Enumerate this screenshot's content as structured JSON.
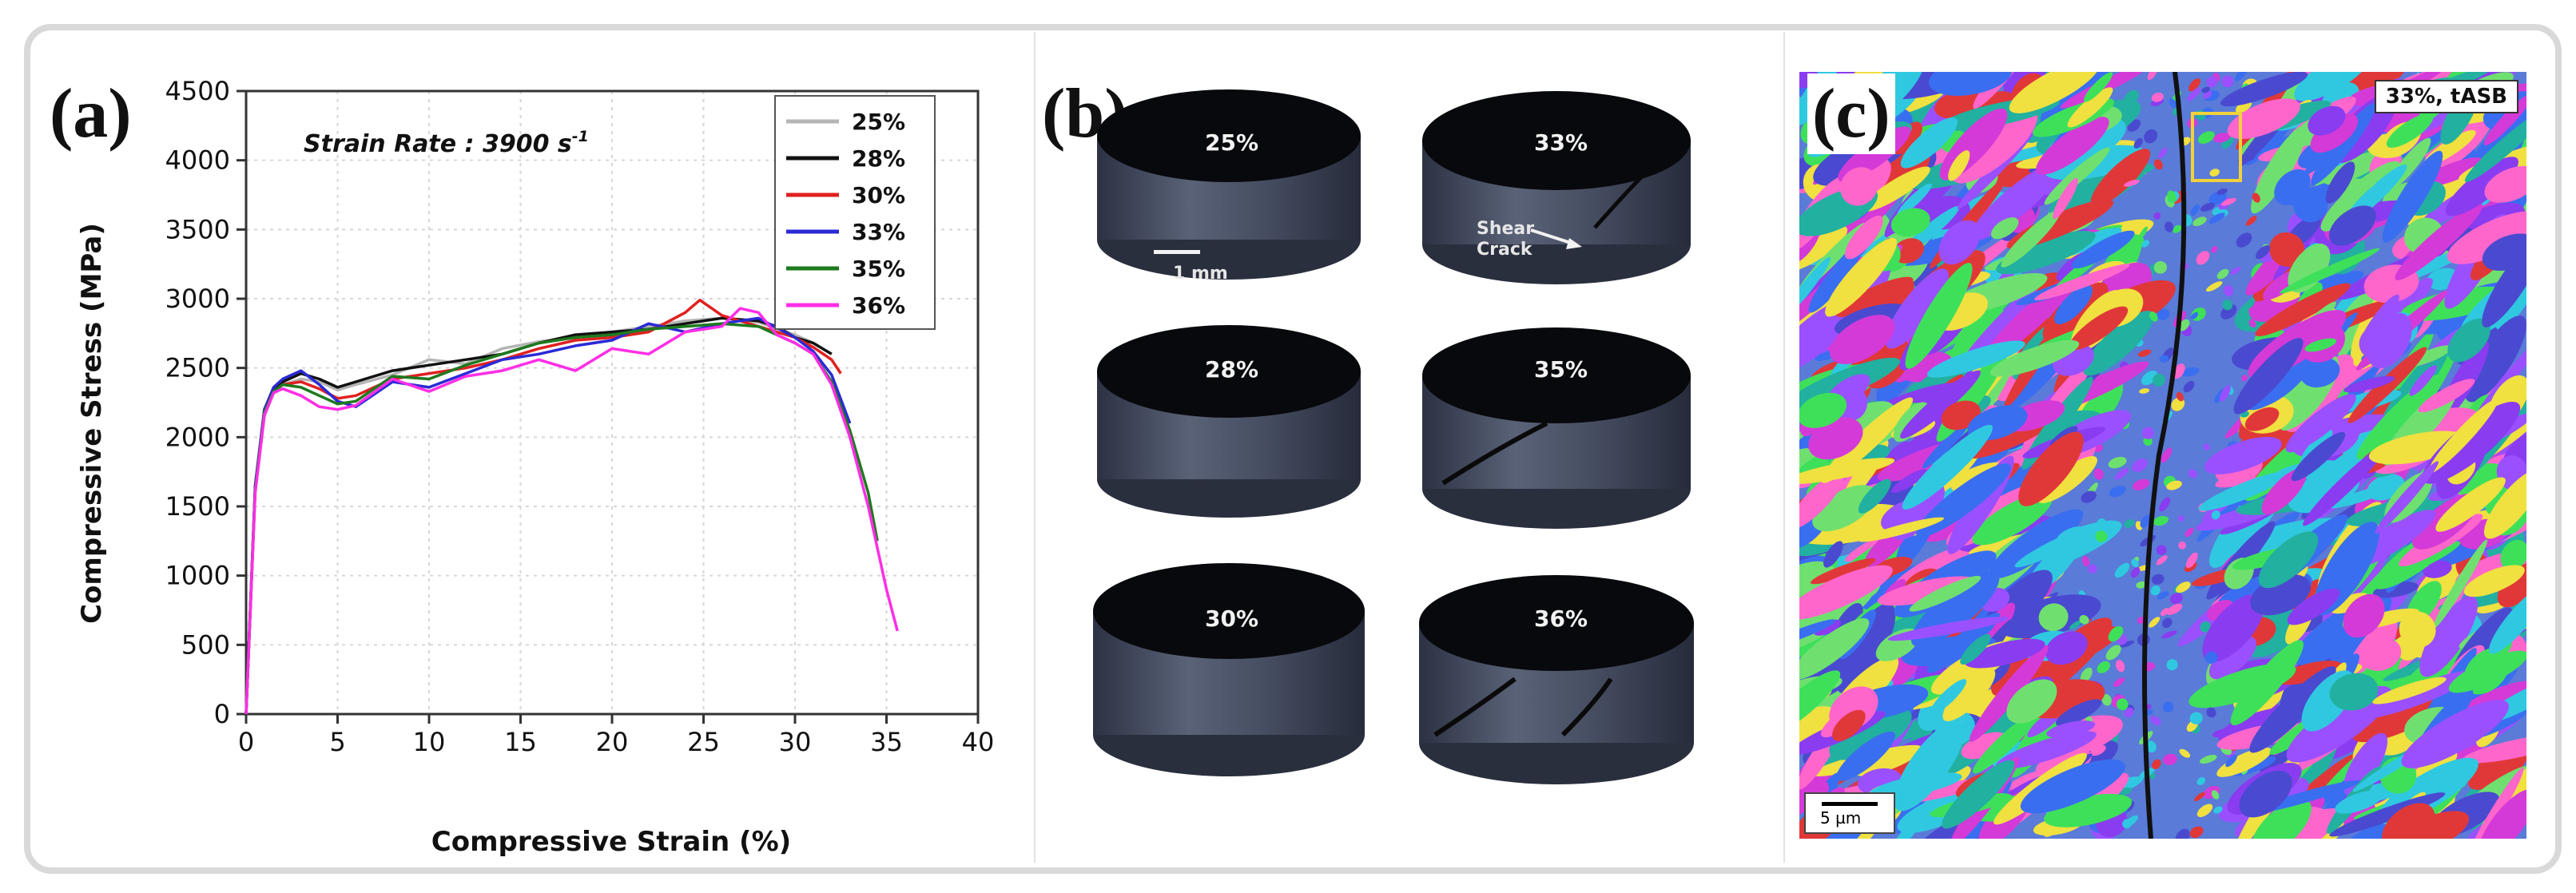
{
  "panels": {
    "a": "(a)",
    "b": "(b)",
    "c": "(c)"
  },
  "chart_data": {
    "type": "line",
    "title": "",
    "annotation": "Strain Rate : 3900 s",
    "annotation_sup": "-1",
    "xlabel": "Compressive Strain (%)",
    "ylabel": "Compressive Stress (MPa)",
    "xlim": [
      0,
      40
    ],
    "ylim": [
      0,
      4500
    ],
    "xticks": [
      0,
      5,
      10,
      15,
      20,
      25,
      30,
      35,
      40
    ],
    "yticks": [
      0,
      500,
      1000,
      1500,
      2000,
      2500,
      3000,
      3500,
      4000,
      4500
    ],
    "legend_position": "top-right",
    "series": [
      {
        "name": "25%",
        "color": "#b5b5b5",
        "x": [
          0,
          0.5,
          1,
          1.5,
          2,
          3,
          4,
          5,
          6,
          8,
          10,
          12,
          14,
          16,
          18,
          20,
          22,
          24,
          26,
          28,
          30,
          31
        ],
        "y": [
          0,
          1600,
          2150,
          2320,
          2380,
          2420,
          2400,
          2340,
          2380,
          2450,
          2560,
          2530,
          2640,
          2690,
          2720,
          2760,
          2800,
          2840,
          2860,
          2830,
          2740,
          2680
        ]
      },
      {
        "name": "28%",
        "color": "#111111",
        "x": [
          0,
          0.5,
          1,
          1.5,
          2,
          3,
          4,
          5,
          6,
          8,
          10,
          12,
          14,
          16,
          18,
          20,
          22,
          24,
          26,
          28,
          29,
          30,
          31,
          32
        ],
        "y": [
          0,
          1650,
          2200,
          2350,
          2400,
          2460,
          2420,
          2360,
          2400,
          2480,
          2520,
          2560,
          2600,
          2680,
          2740,
          2760,
          2780,
          2820,
          2860,
          2840,
          2800,
          2720,
          2680,
          2600
        ]
      },
      {
        "name": "30%",
        "color": "#e02020",
        "x": [
          0,
          0.5,
          1,
          1.5,
          2,
          3,
          4,
          5,
          6,
          8,
          10,
          12,
          14,
          16,
          18,
          20,
          22,
          24,
          24.8,
          26,
          28,
          30,
          31,
          32,
          32.5
        ],
        "y": [
          0,
          1620,
          2180,
          2330,
          2380,
          2400,
          2350,
          2280,
          2300,
          2420,
          2460,
          2500,
          2560,
          2640,
          2700,
          2720,
          2760,
          2900,
          2990,
          2880,
          2800,
          2720,
          2650,
          2560,
          2460
        ]
      },
      {
        "name": "33%",
        "color": "#2a2ad6",
        "x": [
          0,
          0.5,
          1,
          1.5,
          2,
          3,
          4,
          5,
          6,
          8,
          10,
          12,
          14,
          16,
          18,
          20,
          22,
          24,
          26,
          28,
          30,
          31,
          32,
          33
        ],
        "y": [
          0,
          1640,
          2200,
          2360,
          2420,
          2480,
          2380,
          2260,
          2220,
          2400,
          2360,
          2460,
          2560,
          2600,
          2660,
          2700,
          2820,
          2760,
          2820,
          2860,
          2720,
          2620,
          2450,
          2100
        ]
      },
      {
        "name": "35%",
        "color": "#1e7a1e",
        "x": [
          0,
          0.5,
          1,
          1.5,
          2,
          3,
          4,
          5,
          6,
          8,
          10,
          12,
          14,
          16,
          18,
          20,
          22,
          24,
          26,
          28,
          30,
          31,
          32,
          33,
          34,
          34.5
        ],
        "y": [
          0,
          1620,
          2180,
          2330,
          2380,
          2360,
          2300,
          2240,
          2260,
          2440,
          2420,
          2520,
          2600,
          2680,
          2720,
          2740,
          2780,
          2800,
          2820,
          2800,
          2680,
          2600,
          2400,
          2050,
          1600,
          1250
        ]
      },
      {
        "name": "36%",
        "color": "#ff2ee6",
        "x": [
          0,
          0.5,
          1,
          1.5,
          2,
          3,
          4,
          5,
          6,
          8,
          10,
          12,
          14,
          16,
          18,
          20,
          22,
          24,
          26,
          27,
          28,
          29,
          30,
          31,
          32,
          33,
          34,
          35,
          35.6
        ],
        "y": [
          0,
          1600,
          2160,
          2320,
          2350,
          2300,
          2220,
          2200,
          2230,
          2420,
          2330,
          2440,
          2480,
          2560,
          2480,
          2640,
          2600,
          2760,
          2800,
          2930,
          2900,
          2740,
          2680,
          2600,
          2380,
          2000,
          1500,
          900,
          600
        ]
      }
    ]
  },
  "specimens": [
    {
      "label": "25%",
      "note": ""
    },
    {
      "label": "33%",
      "note": "Shear Crack"
    },
    {
      "label": "28%",
      "note": ""
    },
    {
      "label": "35%",
      "note": ""
    },
    {
      "label": "30%",
      "note": ""
    },
    {
      "label": "36%",
      "note": ""
    }
  ],
  "specimen_scale": "1 mm",
  "shear_word1": "Shear",
  "shear_word2": "Crack",
  "ebsd": {
    "badge": "33%, tASB",
    "scale": "5 µm"
  }
}
